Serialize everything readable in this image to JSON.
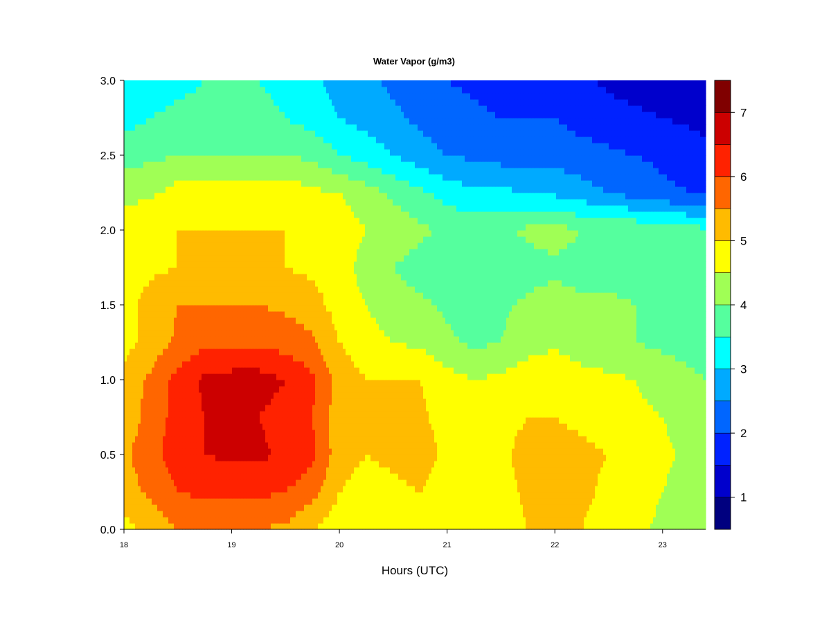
{
  "chart_data": {
    "type": "heatmap",
    "title": "Water Vapor (g/m3)",
    "xlabel": "Hours (UTC)",
    "ylabel": "",
    "xlim": [
      18,
      23.4
    ],
    "ylim": [
      0,
      3
    ],
    "x_ticks": [
      "18",
      "19",
      "20",
      "21",
      "22",
      "23"
    ],
    "y_ticks": [
      "0.0",
      "0.5",
      "1.0",
      "1.5",
      "2.0",
      "2.5",
      "3.0"
    ],
    "colorbar": {
      "range": [
        0.5,
        7.5
      ],
      "step": 0.5,
      "ticks": [
        "1",
        "2",
        "3",
        "4",
        "5",
        "6",
        "7"
      ],
      "colors": [
        "#00007F",
        "#0000CC",
        "#0022FF",
        "#0066FF",
        "#00AAFF",
        "#00FFFF",
        "#55FF9E",
        "#A0FF55",
        "#FFFF00",
        "#FFBB00",
        "#FF6600",
        "#FF2200",
        "#CC0000",
        "#800000"
      ]
    },
    "x": [
      18,
      18.25,
      18.5,
      18.75,
      19,
      19.25,
      19.5,
      19.75,
      20,
      20.25,
      20.5,
      20.75,
      21,
      21.25,
      21.5,
      21.75,
      22,
      22.25,
      22.5,
      22.75,
      23,
      23.25,
      23.4
    ],
    "y": [
      0,
      0.25,
      0.5,
      0.75,
      1,
      1.25,
      1.5,
      1.75,
      2,
      2.25,
      2.5,
      2.75,
      3
    ],
    "z": [
      [
        4.8,
        5.2,
        5.5,
        5.5,
        5.5,
        5.5,
        5.4,
        5.0,
        4.7,
        4.7,
        4.8,
        5.0,
        4.8,
        4.5,
        4.8,
        5.0,
        5.1,
        5.0,
        4.8,
        4.6,
        4.4,
        4.2,
        4.1
      ],
      [
        5.3,
        5.6,
        6.0,
        6.1,
        6.1,
        6.1,
        6.0,
        5.7,
        5.0,
        4.8,
        4.9,
        5.0,
        4.8,
        4.6,
        4.8,
        5.1,
        5.3,
        5.1,
        4.9,
        4.7,
        4.5,
        4.3,
        4.2
      ],
      [
        5.4,
        5.8,
        6.3,
        6.5,
        6.6,
        6.6,
        6.4,
        6.1,
        5.2,
        5.0,
        5.1,
        5.2,
        4.9,
        4.7,
        4.9,
        5.2,
        5.2,
        5.1,
        5.0,
        4.8,
        4.6,
        4.4,
        4.3
      ],
      [
        5.2,
        5.7,
        6.2,
        6.5,
        6.5,
        6.5,
        6.3,
        6.0,
        5.2,
        5.0,
        5.0,
        5.1,
        4.8,
        4.6,
        4.8,
        5.0,
        5.0,
        4.9,
        4.8,
        4.6,
        4.5,
        4.3,
        4.2
      ],
      [
        5.2,
        5.6,
        6.2,
        6.6,
        6.7,
        6.7,
        6.5,
        6.1,
        5.3,
        5.0,
        5.0,
        5.0,
        4.7,
        4.5,
        4.6,
        4.8,
        4.9,
        4.7,
        4.6,
        4.5,
        4.3,
        4.1,
        4.0
      ],
      [
        4.8,
        5.2,
        5.6,
        5.9,
        5.9,
        5.9,
        5.8,
        5.6,
        5.0,
        4.7,
        4.5,
        4.4,
        4.1,
        3.9,
        4.0,
        4.3,
        4.4,
        4.2,
        4.1,
        4.0,
        3.9,
        3.8,
        3.7
      ],
      [
        4.8,
        5.2,
        5.5,
        5.5,
        5.5,
        5.5,
        5.4,
        5.2,
        4.8,
        4.5,
        4.2,
        4.1,
        3.9,
        3.8,
        3.9,
        4.1,
        4.2,
        4.1,
        4.1,
        4.0,
        3.9,
        3.8,
        3.7
      ],
      [
        4.7,
        4.9,
        5.0,
        5.0,
        5.0,
        5.0,
        5.0,
        4.9,
        4.7,
        4.3,
        4.0,
        3.8,
        3.6,
        3.5,
        3.6,
        3.8,
        3.9,
        3.8,
        3.8,
        3.8,
        3.7,
        3.6,
        3.5
      ],
      [
        4.9,
        5.0,
        5.0,
        5.0,
        5.0,
        5.0,
        5.0,
        4.9,
        4.8,
        4.5,
        4.3,
        4.1,
        3.9,
        3.8,
        3.9,
        4.1,
        4.2,
        4.0,
        3.9,
        3.9,
        3.8,
        3.7,
        3.6
      ],
      [
        4.3,
        4.4,
        4.7,
        4.8,
        4.8,
        4.8,
        4.8,
        4.6,
        4.5,
        4.2,
        3.9,
        3.6,
        3.3,
        3.1,
        3.1,
        3.0,
        2.9,
        2.7,
        2.5,
        2.3,
        2.1,
        2.0,
        1.9
      ],
      [
        3.8,
        3.9,
        4.0,
        4.0,
        4.0,
        4.0,
        4.0,
        3.9,
        3.5,
        3.3,
        3.0,
        2.7,
        2.5,
        2.4,
        2.3,
        2.3,
        2.3,
        2.2,
        2.1,
        2.0,
        1.9,
        1.8,
        1.7
      ],
      [
        3.3,
        3.5,
        3.6,
        3.6,
        3.6,
        3.6,
        3.5,
        3.3,
        3.0,
        2.8,
        2.6,
        2.4,
        2.2,
        2.1,
        2.0,
        2.0,
        2.0,
        1.8,
        1.7,
        1.6,
        1.5,
        1.4,
        1.3
      ],
      [
        3.0,
        3.3,
        3.4,
        3.5,
        3.5,
        3.5,
        3.4,
        3.1,
        2.8,
        2.6,
        2.4,
        2.2,
        2.0,
        1.9,
        1.8,
        1.8,
        1.8,
        1.6,
        1.4,
        1.3,
        1.2,
        1.1,
        1.0
      ]
    ]
  }
}
